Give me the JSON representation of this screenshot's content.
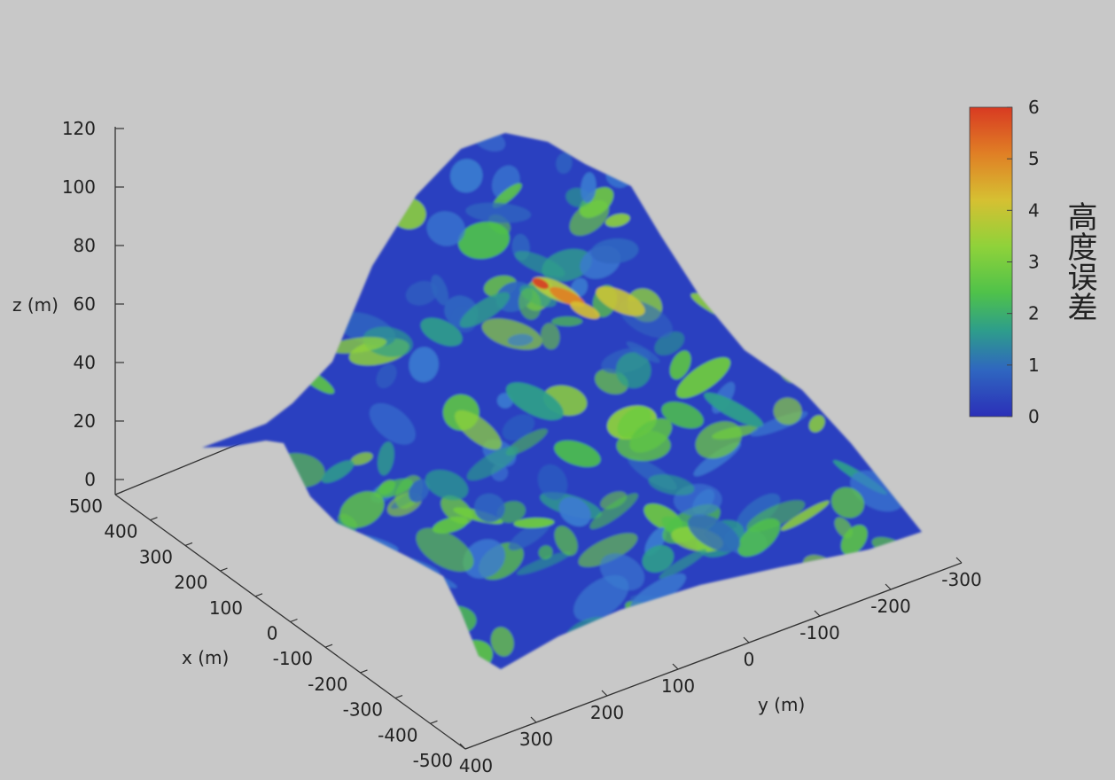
{
  "chart_data": {
    "type": "surface",
    "description_free": true,
    "x_axis": {
      "label": "x (m)",
      "range": [
        -500,
        500
      ],
      "ticks": [
        500,
        400,
        300,
        200,
        100,
        0,
        -100,
        -200,
        -300,
        -400,
        -500
      ]
    },
    "y_axis": {
      "label": "y (m)",
      "range": [
        -300,
        400
      ],
      "ticks": [
        400,
        300,
        200,
        100,
        0,
        -100,
        -200,
        -300
      ]
    },
    "z_axis": {
      "label": "z (m)",
      "range": [
        0,
        120
      ],
      "ticks": [
        0,
        20,
        40,
        60,
        80,
        100,
        120
      ]
    },
    "colorbar": {
      "title": "高度误差",
      "range": [
        0,
        6
      ],
      "ticks": [
        0,
        1,
        2,
        3,
        4,
        5,
        6
      ],
      "colors": [
        "#2b2fb8",
        "#2f66c0",
        "#2e9e8a",
        "#4fc24a",
        "#8fd23a",
        "#d6c032",
        "#e07f25",
        "#d83a22"
      ]
    },
    "surface": {
      "peak_height": 115,
      "error_range": [
        0,
        5.6
      ]
    }
  }
}
